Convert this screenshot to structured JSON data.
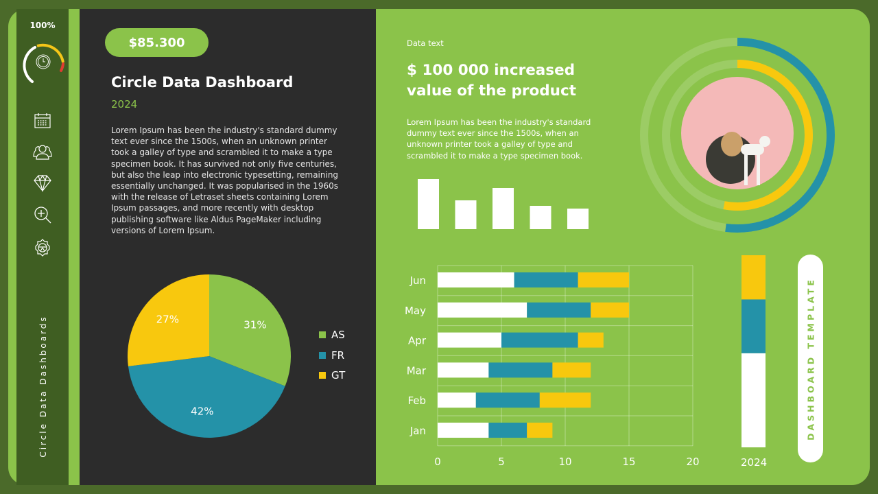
{
  "sidebar": {
    "gauge_percent": "100%",
    "gauge_colors": {
      "track": "#ffffff",
      "accent": "#f5c518",
      "danger": "#e03c31"
    },
    "nav_icons": [
      "calendar-icon",
      "users-icon",
      "diamond-icon",
      "zoom-in-icon",
      "settings-gear-icon"
    ],
    "title": "Circle Data Dashboards"
  },
  "left_panel": {
    "amount": "$85.300",
    "title": "Circle Data Dashboard",
    "year": "2024",
    "body": "Lorem Ipsum has been the industry's standard dummy\ntext ever since the 1500s, when an unknown printer\ntook a galley of type and scrambled it to make a type\nspecimen book. It has survived not only five centuries,\nbut also the leap into electronic typesetting, remaining\nessentially unchanged. It was popularised in the 1960s\nwith the release of Letraset sheets containing Lorem\nIpsum passages, and more recently with desktop\npublishing software like Aldus PageMaker including\nversions of Lorem Ipsum."
  },
  "right_panel": {
    "eyebrow": "Data text",
    "headline": "$ 100 000 increased\nvalue of the product",
    "body": "Lorem Ipsum has been the industry's standard\ndummy text ever since the 1500s, when an\nunknown printer took a galley of type and\nscrambled it to make a type specimen book.",
    "vertical_label": "DASHBOARD TEMPLATE"
  },
  "colors": {
    "green": "#8bc34a",
    "blue": "#2492a8",
    "yellow": "#f8c80e",
    "white": "#ffffff",
    "dark": "#2c2c2c"
  },
  "chart_data": [
    {
      "type": "pie",
      "series": [
        {
          "name": "AS",
          "value": 31,
          "label": "31%",
          "color": "#8bc34a"
        },
        {
          "name": "FR",
          "value": 42,
          "label": "42%",
          "color": "#2492a8"
        },
        {
          "name": "GT",
          "value": 27,
          "label": "27%",
          "color": "#f8c80e"
        }
      ],
      "legend": "right"
    },
    {
      "type": "bar",
      "orientation": "vertical",
      "values": [
        7.3,
        4.2,
        6.0,
        3.4,
        3.0
      ],
      "axes": "none",
      "color": "#ffffff"
    },
    {
      "type": "bar",
      "orientation": "horizontal",
      "stacked": true,
      "categories": [
        "Jan",
        "Feb",
        "Mar",
        "Apr",
        "May",
        "Jun"
      ],
      "series": [
        {
          "values": [
            4,
            3,
            4,
            5,
            7,
            6
          ],
          "color": "#ffffff"
        },
        {
          "values": [
            3,
            5,
            5,
            6,
            5,
            5
          ],
          "color": "#2492a8"
        },
        {
          "values": [
            2,
            4,
            3,
            2,
            3,
            4
          ],
          "color": "#f8c80e"
        }
      ],
      "xlim": [
        0,
        20
      ],
      "xticks": [
        "0",
        "5",
        "10",
        "15",
        "20"
      ],
      "grid": true
    },
    {
      "type": "bar",
      "orientation": "vertical",
      "stacked": true,
      "categories": [
        "2024"
      ],
      "series": [
        {
          "value": 49,
          "color": "#ffffff"
        },
        {
          "value": 28,
          "color": "#2492a8"
        },
        {
          "value": 23,
          "color": "#f8c80e"
        }
      ],
      "unit": "%"
    },
    {
      "type": "radial",
      "rings": [
        {
          "value": 52,
          "color": "#2492a8"
        },
        {
          "value": 53,
          "color": "#f8c80e"
        }
      ],
      "unit": "%"
    }
  ]
}
